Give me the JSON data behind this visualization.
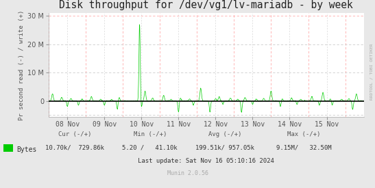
{
  "title": "Disk throughput for /dev/vg1/lv-mariadb - by week",
  "ylabel": "Pr second read (-) / write (+)",
  "xlabel_ticks": [
    "08 Nov",
    "09 Nov",
    "10 Nov",
    "11 Nov",
    "12 Nov",
    "13 Nov",
    "14 Nov",
    "15 Nov"
  ],
  "ylim": [
    -5500000,
    31000000
  ],
  "xlim_days": [
    0,
    8.5
  ],
  "background_color": "#e8e8e8",
  "plot_bg_color": "#ffffff",
  "grid_color_major": "#ffaaaa",
  "grid_color_minor": "#cccccc",
  "line_color": "#00cc00",
  "zero_line_color": "#000000",
  "legend_label": "Bytes",
  "legend_color": "#00cc00",
  "footer_cur_label": "Cur (-/+)",
  "footer_cur_val": "10.70k/  729.86k",
  "footer_min_label": "Min (-/+)",
  "footer_min_val": "5.20 /   41.10k",
  "footer_avg_label": "Avg (-/+)",
  "footer_avg_val": "199.51k/ 957.05k",
  "footer_max_label": "Max (-/+)",
  "footer_max_val": "9.15M/   32.50M",
  "last_update": "Last update: Sat Nov 16 05:10:16 2024",
  "munin_version": "Munin 2.0.56",
  "rrdtool_label": "RRDTOOL / TOBI OETIKER",
  "title_fontsize": 10.5,
  "axis_fontsize": 7,
  "legend_fontsize": 7.5,
  "footer_fontsize": 6.5,
  "big_spike_x": 2.45,
  "big_spike_y": 27000000,
  "tick_positions": [
    0.5,
    1.5,
    2.5,
    3.5,
    4.5,
    5.5,
    6.5,
    7.5
  ]
}
